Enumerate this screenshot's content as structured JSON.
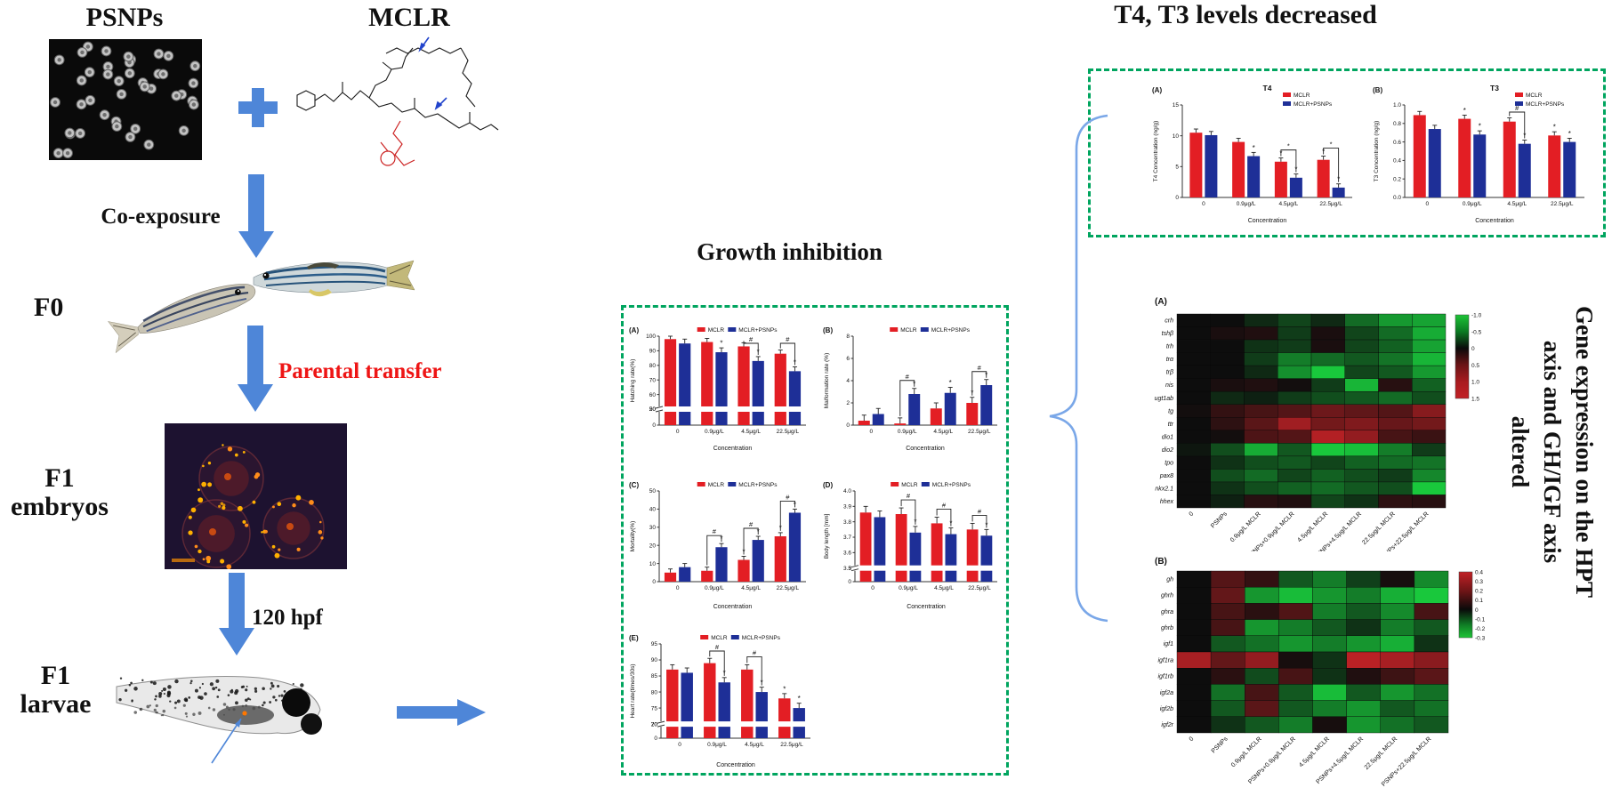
{
  "flow": {
    "psnps_label": "PSNPs",
    "mclr_label": "MCLR",
    "plus": "+",
    "co_exposure": "Co-exposure",
    "f0": "F0",
    "parental_transfer": "Parental transfer",
    "f1_embryos_line1": "F1",
    "f1_embryos_line2": "embryos",
    "hpf": "120 hpf",
    "f1_larvae_line1": "F1",
    "f1_larvae_line2": "larvae"
  },
  "sections": {
    "growth_title": "Growth inhibition",
    "t4t3_title": "T4, T3 levels decreased",
    "side_text_lines": [
      "Gene expression on the HPT",
      "axis and GH/IGF axis",
      "altered"
    ]
  },
  "colors": {
    "arrow_blue": "#4e86d8",
    "brace_blue": "#7aa7e8",
    "dashed_green": "#00a55f",
    "bar_red": "#e31e24",
    "bar_blue": "#1e2f97",
    "transfer_red": "#ee1515"
  },
  "chart_data": [
    {
      "id": "A",
      "type": "bar",
      "panel_label": "(A)",
      "title": "",
      "ylabel": "Hatching rate(%)",
      "xlabel": "Concentration",
      "categories": [
        "0",
        "0.9μg/L",
        "4.5μg/L",
        "22.5μg/L"
      ],
      "series": [
        {
          "name": "MCLR",
          "color": "#e31e24",
          "values": [
            98,
            96,
            93,
            88
          ],
          "err": 2.5,
          "stars": [
            "",
            "",
            "",
            ""
          ]
        },
        {
          "name": "MCLR+PSNPs",
          "color": "#1e2f97",
          "values": [
            95,
            89,
            83,
            76
          ],
          "err": 3,
          "stars": [
            "",
            "*",
            "*",
            "*"
          ]
        }
      ],
      "axis": {
        "segments": [
          {
            "min": 0,
            "max": 20,
            "frac": 0.18,
            "ticks": [
              0,
              20
            ]
          },
          {
            "min": 50,
            "max": 100,
            "frac": 0.82,
            "ticks": [
              50,
              60,
              70,
              80,
              90,
              100
            ]
          }
        ]
      },
      "brackets": [
        {
          "group": 2,
          "label": "#"
        },
        {
          "group": 3,
          "label": "#"
        }
      ]
    },
    {
      "id": "B",
      "type": "bar",
      "panel_label": "(B)",
      "title": "",
      "ylabel": "Malformation rate (%)",
      "xlabel": "Concentration",
      "categories": [
        "0",
        "0.9μg/L",
        "4.5μg/L",
        "22.5μg/L"
      ],
      "series": [
        {
          "name": "MCLR",
          "color": "#e31e24",
          "values": [
            0.4,
            0.15,
            1.5,
            2.0
          ],
          "err": 0.5,
          "stars": [
            "",
            "",
            "",
            "*"
          ]
        },
        {
          "name": "MCLR+PSNPs",
          "color": "#1e2f97",
          "values": [
            1.0,
            2.8,
            2.9,
            3.6
          ],
          "err": 0.5,
          "stars": [
            "",
            "*",
            "*",
            "*"
          ]
        }
      ],
      "axis": {
        "segments": [
          {
            "min": 0,
            "max": 8,
            "frac": 1,
            "ticks": [
              0,
              2,
              4,
              6,
              8
            ]
          }
        ]
      },
      "brackets": [
        {
          "group": 1,
          "label": "#"
        },
        {
          "group": 3,
          "label": "#"
        }
      ]
    },
    {
      "id": "C",
      "type": "bar",
      "panel_label": "(C)",
      "title": "",
      "ylabel": "Mortality(%)",
      "xlabel": "Concentration",
      "categories": [
        "0",
        "0.9μg/L",
        "4.5μg/L",
        "22.5μg/L"
      ],
      "series": [
        {
          "name": "MCLR",
          "color": "#e31e24",
          "values": [
            5,
            6,
            12,
            25
          ],
          "err": 2,
          "stars": [
            "",
            "",
            "*",
            "*"
          ]
        },
        {
          "name": "MCLR+PSNPs",
          "color": "#1e2f97",
          "values": [
            8,
            19,
            23,
            38
          ],
          "err": 2,
          "stars": [
            "",
            "*",
            "*",
            "*"
          ]
        }
      ],
      "axis": {
        "segments": [
          {
            "min": 0,
            "max": 50,
            "frac": 1,
            "ticks": [
              0,
              10,
              20,
              30,
              40,
              50
            ]
          }
        ]
      },
      "brackets": [
        {
          "group": 1,
          "label": "#"
        },
        {
          "group": 2,
          "label": "#"
        },
        {
          "group": 3,
          "label": "#"
        }
      ]
    },
    {
      "id": "D",
      "type": "bar",
      "panel_label": "(D)",
      "title": "",
      "ylabel": "Body length [mm]",
      "xlabel": "Concentration",
      "categories": [
        "0",
        "0.9μg/L",
        "4.5μg/L",
        "22.5μg/L"
      ],
      "series": [
        {
          "name": "MCLR",
          "color": "#e31e24",
          "values": [
            3.86,
            3.85,
            3.79,
            3.75
          ],
          "err": 0.04,
          "stars": [
            "",
            "",
            "",
            ""
          ]
        },
        {
          "name": "MCLR+PSNPs",
          "color": "#1e2f97",
          "values": [
            3.83,
            3.73,
            3.72,
            3.71
          ],
          "err": 0.04,
          "stars": [
            "",
            "*",
            "*",
            "*"
          ]
        }
      ],
      "axis": {
        "segments": [
          {
            "min": 0,
            "max": 3,
            "frac": 0.15,
            "ticks": [
              0,
              3
            ]
          },
          {
            "min": 3.5,
            "max": 4.0,
            "frac": 0.85,
            "ticks": [
              3.5,
              3.6,
              3.7,
              3.8,
              3.9,
              4.0
            ],
            "tick_labels": [
              "3.5",
              "3.6",
              "3.7",
              "3.8",
              "3.9",
              "4.0"
            ]
          }
        ]
      },
      "brackets": [
        {
          "group": 1,
          "label": "#"
        },
        {
          "group": 2,
          "label": "#"
        },
        {
          "group": 3,
          "label": "#"
        }
      ]
    },
    {
      "id": "E",
      "type": "bar",
      "panel_label": "(E)",
      "title": "",
      "ylabel": "Heart rate(times/30s)",
      "xlabel": "Concentration",
      "categories": [
        "0",
        "0.9μg/L",
        "4.5μg/L",
        "22.5μg/L"
      ],
      "series": [
        {
          "name": "MCLR",
          "color": "#e31e24",
          "values": [
            87,
            89,
            87,
            78
          ],
          "err": 1.5,
          "stars": [
            "",
            "",
            "",
            "*"
          ]
        },
        {
          "name": "MCLR+PSNPs",
          "color": "#1e2f97",
          "values": [
            86,
            83,
            80,
            75
          ],
          "err": 1.5,
          "stars": [
            "",
            "*",
            "*",
            "*"
          ]
        }
      ],
      "axis": {
        "segments": [
          {
            "min": 0,
            "max": 20,
            "frac": 0.15,
            "ticks": [
              0,
              20
            ]
          },
          {
            "min": 70,
            "max": 95,
            "frac": 0.85,
            "ticks": [
              70,
              75,
              80,
              85,
              90,
              95
            ]
          }
        ]
      },
      "brackets": [
        {
          "group": 1,
          "label": "#"
        },
        {
          "group": 2,
          "label": "#"
        }
      ]
    },
    {
      "id": "T4",
      "type": "bar",
      "panel_label": "(A)",
      "title": "T4",
      "ylabel": "T4 Concentration (ng/g)",
      "xlabel": "Concentration",
      "categories": [
        "0",
        "0.9μg/L",
        "4.5μg/L",
        "22.5μg/L"
      ],
      "series": [
        {
          "name": "MCLR",
          "color": "#e31e24",
          "values": [
            10.5,
            9.0,
            5.8,
            6.1
          ],
          "err": 0.6,
          "stars": [
            "",
            "",
            "*",
            "*"
          ]
        },
        {
          "name": "MCLR+PSNPs",
          "color": "#1e2f97",
          "values": [
            10.1,
            6.7,
            3.2,
            1.6
          ],
          "err": 0.6,
          "stars": [
            "",
            "*",
            "*",
            "*"
          ]
        }
      ],
      "axis": {
        "segments": [
          {
            "min": 0,
            "max": 15,
            "frac": 1,
            "ticks": [
              0,
              5,
              10,
              15
            ]
          }
        ]
      },
      "brackets": [
        {
          "group": 2,
          "label": "*"
        },
        {
          "group": 3,
          "label": "*"
        }
      ]
    },
    {
      "id": "T3",
      "type": "bar",
      "panel_label": "(B)",
      "title": "T3",
      "ylabel": "T3 Concentration (ng/g)",
      "xlabel": "Concentration",
      "categories": [
        "0",
        "0.9μg/L",
        "4.5μg/L",
        "22.5μg/L"
      ],
      "series": [
        {
          "name": "MCLR",
          "color": "#e31e24",
          "values": [
            0.89,
            0.85,
            0.82,
            0.67
          ],
          "err": 0.04,
          "stars": [
            "",
            "*",
            "",
            "*"
          ]
        },
        {
          "name": "MCLR+PSNPs",
          "color": "#1e2f97",
          "values": [
            0.74,
            0.68,
            0.58,
            0.6
          ],
          "err": 0.04,
          "stars": [
            "",
            "*",
            "*",
            "*"
          ]
        }
      ],
      "axis": {
        "segments": [
          {
            "min": 0,
            "max": 1.0,
            "frac": 1,
            "ticks": [
              0,
              0.2,
              0.4,
              0.6,
              0.8,
              1.0
            ],
            "tick_labels": [
              "0.0",
              "0.2",
              "0.4",
              "0.6",
              "0.8",
              "1.0"
            ]
          }
        ]
      },
      "brackets": [
        {
          "group": 2,
          "label": "#"
        }
      ]
    },
    {
      "id": "HA",
      "type": "heatmap",
      "panel_label": "(A)",
      "rows": [
        "crh",
        "tshβ",
        "trh",
        "trα",
        "trβ",
        "nis",
        "ugt1ab",
        "tg",
        "ttr",
        "dio1",
        "dio2",
        "tpo",
        "pax8",
        "nkx2.1",
        "hhex"
      ],
      "columns": [
        "0",
        "PSNPs",
        "0.9μg/L MCLR",
        "PSNPs+0.9μg/L MCLR",
        "4.5μg/L MCLR",
        "PSNPs+4.5μg/L MCLR",
        "22.5μg/L MCLR",
        "PSNPs+22.5μg/L MCLR"
      ],
      "colorbar_ticks": [
        "-1.0",
        "-0.5",
        "0",
        "0.5",
        "1.0",
        "1.5"
      ],
      "scale": {
        "green_max": 1.0,
        "red_max": 1.5
      },
      "values": [
        [
          0,
          0,
          -0.15,
          -0.3,
          -0.15,
          -0.5,
          -0.75,
          -0.8
        ],
        [
          0,
          0.1,
          0.15,
          -0.25,
          0.1,
          -0.3,
          -0.5,
          -0.85
        ],
        [
          0,
          0,
          -0.2,
          -0.25,
          0.1,
          -0.3,
          -0.45,
          -0.8
        ],
        [
          0,
          0,
          -0.25,
          -0.6,
          -0.5,
          -0.4,
          -0.55,
          -0.9
        ],
        [
          0,
          0,
          -0.15,
          -0.7,
          -1.0,
          -0.3,
          -0.4,
          -0.75
        ],
        [
          0,
          0.1,
          0.15,
          0.05,
          -0.25,
          -0.9,
          0.2,
          -0.45
        ],
        [
          0,
          -0.15,
          -0.1,
          -0.25,
          -0.35,
          -0.4,
          -0.5,
          -0.35
        ],
        [
          0.05,
          0.3,
          0.45,
          0.55,
          0.75,
          0.65,
          0.55,
          0.95
        ],
        [
          0,
          0.25,
          0.6,
          1.15,
          0.8,
          0.9,
          0.7,
          0.8
        ],
        [
          0,
          0.05,
          0.5,
          0.55,
          1.3,
          1.05,
          0.45,
          0.35
        ],
        [
          -0.05,
          -0.35,
          -0.85,
          -0.4,
          -1.0,
          -0.95,
          -0.6,
          -0.25
        ],
        [
          0,
          -0.2,
          -0.35,
          -0.4,
          -0.3,
          -0.45,
          -0.5,
          -0.55
        ],
        [
          0,
          -0.35,
          -0.5,
          -0.3,
          -0.45,
          -0.35,
          -0.25,
          -0.65
        ],
        [
          0,
          -0.2,
          -0.35,
          -0.45,
          -0.5,
          -0.4,
          -0.35,
          -1.0
        ],
        [
          0,
          -0.1,
          0.2,
          0.15,
          -0.3,
          -0.2,
          0.25,
          0.2
        ]
      ]
    },
    {
      "id": "HB",
      "type": "heatmap",
      "panel_label": "(B)",
      "rows": [
        "gh",
        "ghrh",
        "ghra",
        "ghrb",
        "igf1",
        "igf1ra",
        "igf1rb",
        "igf2a",
        "igf2b",
        "igf2r"
      ],
      "columns": [
        "0",
        "PSNPs",
        "0.9μg/L MCLR",
        "PSNPs+0.9μg/L MCLR",
        "4.5μg/L MCLR",
        "PSNPs+4.5μg/L MCLR",
        "22.5μg/L MCLR",
        "PSNPs+22.5μg/L MCLR"
      ],
      "colorbar_ticks": [
        "0.4",
        "0.3",
        "0.2",
        "0.1",
        "0",
        "-0.1",
        "-0.2",
        "-0.3"
      ],
      "scale": {
        "green_max": 0.3,
        "red_max": 0.4
      },
      "values": [
        [
          0,
          0.15,
          0.08,
          -0.12,
          -0.18,
          -0.08,
          0.02,
          -0.2
        ],
        [
          0,
          0.18,
          -0.22,
          -0.28,
          -0.22,
          -0.18,
          -0.26,
          -0.3
        ],
        [
          0,
          0.12,
          0.06,
          0.14,
          -0.18,
          -0.12,
          -0.2,
          0.12
        ],
        [
          0,
          0.12,
          -0.22,
          -0.18,
          -0.12,
          -0.06,
          -0.18,
          -0.12
        ],
        [
          0,
          -0.12,
          -0.16,
          -0.22,
          -0.18,
          -0.22,
          -0.26,
          -0.06
        ],
        [
          0.32,
          0.18,
          0.28,
          0.02,
          -0.06,
          0.36,
          0.32,
          0.26
        ],
        [
          0,
          0.06,
          -0.1,
          0.12,
          -0.06,
          0.04,
          0.1,
          0.16
        ],
        [
          0,
          -0.16,
          0.12,
          -0.12,
          -0.28,
          -0.12,
          -0.22,
          -0.16
        ],
        [
          0,
          -0.12,
          0.16,
          -0.12,
          -0.18,
          -0.22,
          -0.12,
          -0.16
        ],
        [
          0,
          -0.06,
          -0.12,
          -0.18,
          0.02,
          -0.22,
          -0.16,
          -0.12
        ]
      ]
    }
  ]
}
